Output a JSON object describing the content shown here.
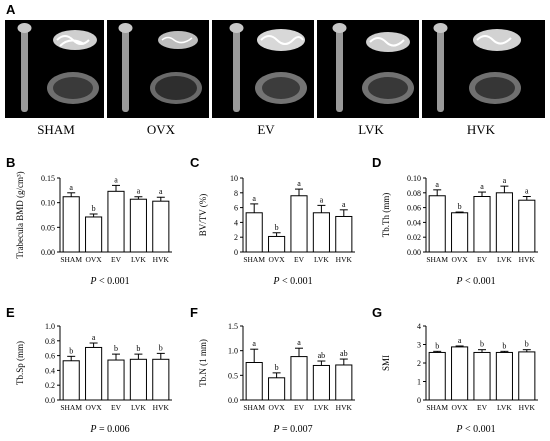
{
  "figure": {
    "panel_a_letter": "A",
    "groups": [
      "SHAM",
      "OVX",
      "EV",
      "LVK",
      "HVK"
    ]
  },
  "chart_data": [
    {
      "panel": "B",
      "type": "bar",
      "categories": [
        "SHAM",
        "OVX",
        "EV",
        "LVK",
        "HVK"
      ],
      "values": [
        0.112,
        0.071,
        0.123,
        0.107,
        0.103
      ],
      "errors": [
        0.008,
        0.006,
        0.012,
        0.005,
        0.008
      ],
      "letters": [
        "a",
        "b",
        "a",
        "a",
        "a"
      ],
      "ylabel": "Trabecula BMD (g/cm³)",
      "ylim": [
        0,
        0.15
      ],
      "yticks": [
        "0.00",
        "0.05",
        "0.10",
        "0.15"
      ],
      "ytick_values": [
        0,
        0.05,
        0.1,
        0.15
      ],
      "p_label": "P",
      "p_value": " < 0.001"
    },
    {
      "panel": "C",
      "type": "bar",
      "categories": [
        "SHAM",
        "OVX",
        "EV",
        "LVK",
        "HVK"
      ],
      "values": [
        5.3,
        2.1,
        7.6,
        5.3,
        4.8
      ],
      "errors": [
        1.2,
        0.5,
        0.9,
        1.0,
        0.9
      ],
      "letters": [
        "a",
        "b",
        "a",
        "a",
        "a"
      ],
      "ylabel": "BV/TV (%)",
      "ylim": [
        0,
        10
      ],
      "yticks": [
        "0",
        "2",
        "4",
        "6",
        "8",
        "10"
      ],
      "ytick_values": [
        0,
        2,
        4,
        6,
        8,
        10
      ],
      "p_label": "P",
      "p_value": " < 0.001"
    },
    {
      "panel": "D",
      "type": "bar",
      "categories": [
        "SHAM",
        "OVX",
        "EV",
        "LVK",
        "HVK"
      ],
      "values": [
        0.076,
        0.053,
        0.075,
        0.08,
        0.07
      ],
      "errors": [
        0.008,
        0.001,
        0.006,
        0.009,
        0.005
      ],
      "letters": [
        "a",
        "b",
        "a",
        "a",
        "a"
      ],
      "ylabel": "Tb.Th (mm)",
      "ylim": [
        0,
        0.1
      ],
      "yticks": [
        "0.00",
        "0.02",
        "0.04",
        "0.06",
        "0.08",
        "0.10"
      ],
      "ytick_values": [
        0,
        0.02,
        0.04,
        0.06,
        0.08,
        0.1
      ],
      "p_label": "P",
      "p_value": " < 0.001"
    },
    {
      "panel": "E",
      "type": "bar",
      "categories": [
        "SHAM",
        "OVX",
        "EV",
        "LVK",
        "HVK"
      ],
      "values": [
        0.53,
        0.71,
        0.54,
        0.55,
        0.55
      ],
      "errors": [
        0.06,
        0.06,
        0.08,
        0.07,
        0.08
      ],
      "letters": [
        "b",
        "a",
        "b",
        "b",
        "b"
      ],
      "ylabel": "Tb.Sp (mm)",
      "ylim": [
        0,
        1.0
      ],
      "yticks": [
        "0.0",
        "0.2",
        "0.4",
        "0.6",
        "0.8",
        "1.0"
      ],
      "ytick_values": [
        0,
        0.2,
        0.4,
        0.6,
        0.8,
        1.0
      ],
      "p_label": "P",
      "p_value": " = 0.006"
    },
    {
      "panel": "F",
      "type": "bar",
      "categories": [
        "SHAM",
        "OVX",
        "EV",
        "LVK",
        "HVK"
      ],
      "values": [
        0.76,
        0.45,
        0.88,
        0.7,
        0.71
      ],
      "errors": [
        0.27,
        0.1,
        0.17,
        0.09,
        0.12
      ],
      "letters": [
        "a",
        "b",
        "a",
        "ab",
        "ab"
      ],
      "ylabel": "Tb.N (1 mm)",
      "ylim": [
        0,
        1.5
      ],
      "yticks": [
        "0.0",
        "0.5",
        "1.0",
        "1.5"
      ],
      "ytick_values": [
        0,
        0.5,
        1.0,
        1.5
      ],
      "p_label": "P",
      "p_value": " = 0.007"
    },
    {
      "panel": "G",
      "type": "bar",
      "categories": [
        "SHAM",
        "OVX",
        "EV",
        "LVK",
        "HVK"
      ],
      "values": [
        2.57,
        2.87,
        2.57,
        2.57,
        2.6
      ],
      "errors": [
        0.06,
        0.05,
        0.15,
        0.06,
        0.12
      ],
      "letters": [
        "b",
        "a",
        "b",
        "b",
        "b"
      ],
      "ylabel": "SMI",
      "ylim": [
        0,
        4
      ],
      "yticks": [
        "0",
        "1",
        "2",
        "3",
        "4"
      ],
      "ytick_values": [
        0,
        1,
        2,
        3,
        4
      ],
      "p_label": "P",
      "p_value": " < 0.001"
    }
  ]
}
